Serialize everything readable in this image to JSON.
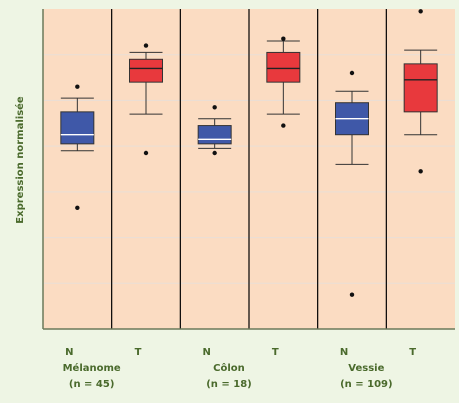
{
  "chart_data": {
    "type": "box",
    "ylabel": "Expression normalisée",
    "ylim": [
      0,
      7
    ],
    "grid": true,
    "colors": {
      "background": "#eef5e4",
      "panel": "#fbdcc2",
      "grid": "#e9dfd6",
      "axis": "#6b7a5a",
      "label": "#4a6a2c",
      "N": "#3f58a8",
      "T": "#e8393d"
    },
    "groups": [
      {
        "name": "Mélanome",
        "n_label": "(n = 45)",
        "boxes": [
          {
            "label": "N",
            "whisker_low": 3.9,
            "q1": 4.05,
            "median": 4.25,
            "q3": 4.75,
            "whisker_high": 5.05,
            "outliers": [
              5.3,
              2.65
            ]
          },
          {
            "label": "T",
            "whisker_low": 4.7,
            "q1": 5.4,
            "median": 5.7,
            "q3": 5.9,
            "whisker_high": 6.05,
            "outliers": [
              6.2,
              3.85
            ]
          }
        ]
      },
      {
        "name": "Côlon",
        "n_label": "(n = 18)",
        "boxes": [
          {
            "label": "N",
            "whisker_low": 3.95,
            "q1": 4.05,
            "median": 4.15,
            "q3": 4.45,
            "whisker_high": 4.6,
            "outliers": [
              4.85,
              3.85
            ]
          },
          {
            "label": "T",
            "whisker_low": 4.7,
            "q1": 5.4,
            "median": 5.7,
            "q3": 6.05,
            "whisker_high": 6.3,
            "outliers": [
              6.35,
              4.45
            ]
          }
        ]
      },
      {
        "name": "Vessie",
        "n_label": "(n = 109)",
        "boxes": [
          {
            "label": "N",
            "whisker_low": 3.6,
            "q1": 4.25,
            "median": 4.6,
            "q3": 4.95,
            "whisker_high": 5.2,
            "outliers": [
              5.6,
              0.75
            ]
          },
          {
            "label": "T",
            "whisker_low": 4.25,
            "q1": 4.75,
            "median": 5.45,
            "q3": 5.8,
            "whisker_high": 6.1,
            "outliers": [
              6.95,
              3.45
            ]
          }
        ]
      }
    ]
  }
}
